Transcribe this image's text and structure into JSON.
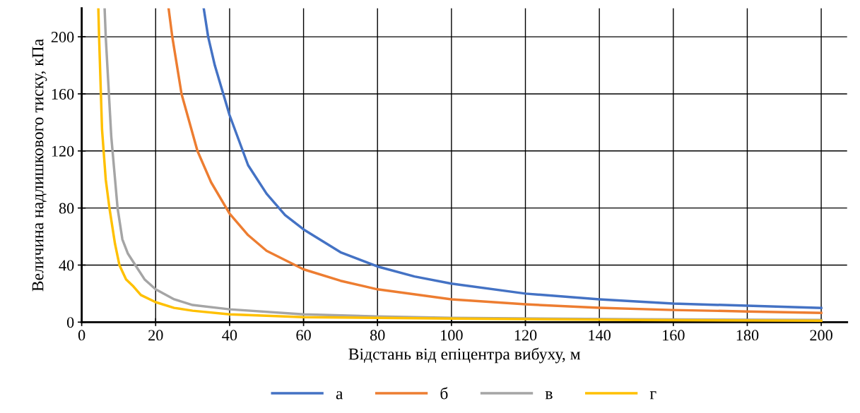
{
  "chart_data": {
    "type": "line",
    "xlabel": "Відстань від епіцентра вибуху, м",
    "ylabel": "Величина надлишкового тиску, кПа",
    "xlim": [
      0,
      207
    ],
    "ylim": [
      0,
      220
    ],
    "xticks": [
      0,
      20,
      40,
      60,
      80,
      100,
      120,
      140,
      160,
      180,
      200
    ],
    "yticks": [
      0,
      40,
      80,
      120,
      160,
      200
    ],
    "grid": true,
    "legend": "bottom",
    "marker": "none",
    "line_style": "solid",
    "series": [
      {
        "name": "а",
        "color": "#4472c4",
        "x": [
          33,
          34.2,
          36,
          40,
          45,
          50,
          55,
          60,
          70,
          80,
          90,
          100,
          120,
          140,
          160,
          180,
          200
        ],
        "values": [
          220,
          200,
          180,
          145,
          110,
          90,
          75,
          65,
          49,
          39,
          32,
          27,
          20,
          16,
          13,
          11.5,
          10
        ]
      },
      {
        "name": "б",
        "color": "#ed7d31",
        "x": [
          23.5,
          24.5,
          27,
          31.3,
          35,
          40,
          45,
          50,
          60,
          70,
          80,
          100,
          120,
          140,
          160,
          180,
          200
        ],
        "values": [
          220,
          200,
          160,
          120,
          98,
          76,
          61,
          50,
          37,
          29,
          23,
          16,
          12.5,
          10,
          8.5,
          7.5,
          6.5
        ]
      },
      {
        "name": "в",
        "color": "#a5a5a5",
        "x": [
          6.2,
          6.5,
          8,
          9.7,
          11,
          12.5,
          14.5,
          17,
          20,
          25,
          30,
          40,
          60,
          80,
          100,
          150,
          200
        ],
        "values": [
          220,
          200,
          130,
          80,
          58,
          48,
          40,
          30,
          23,
          16,
          12,
          9,
          5.5,
          4,
          3,
          2,
          1.5
        ]
      },
      {
        "name": "г",
        "color": "#ffc000",
        "x": [
          4.5,
          4.7,
          5.5,
          6.5,
          7.5,
          9,
          10.2,
          12,
          14,
          16,
          20,
          25,
          30,
          40,
          60,
          100,
          150,
          200
        ],
        "values": [
          220,
          200,
          135,
          100,
          80,
          55,
          40,
          30,
          25,
          19,
          14,
          10,
          8,
          5.5,
          3.5,
          2.5,
          1.5,
          1
        ]
      }
    ]
  }
}
